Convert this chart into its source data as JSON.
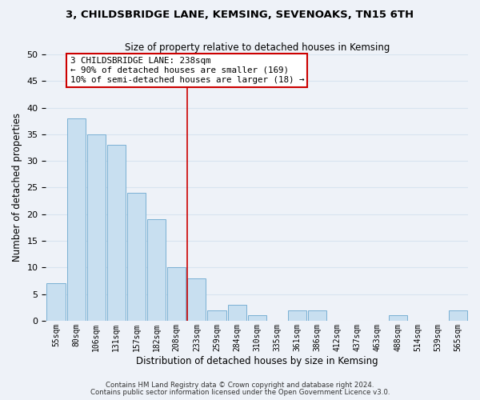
{
  "title": "3, CHILDSBRIDGE LANE, KEMSING, SEVENOAKS, TN15 6TH",
  "subtitle": "Size of property relative to detached houses in Kemsing",
  "xlabel": "Distribution of detached houses by size in Kemsing",
  "ylabel": "Number of detached properties",
  "bar_labels": [
    "55sqm",
    "80sqm",
    "106sqm",
    "131sqm",
    "157sqm",
    "182sqm",
    "208sqm",
    "233sqm",
    "259sqm",
    "284sqm",
    "310sqm",
    "335sqm",
    "361sqm",
    "386sqm",
    "412sqm",
    "437sqm",
    "463sqm",
    "488sqm",
    "514sqm",
    "539sqm",
    "565sqm"
  ],
  "bar_values": [
    7,
    38,
    35,
    33,
    24,
    19,
    10,
    8,
    2,
    3,
    1,
    0,
    2,
    2,
    0,
    0,
    0,
    1,
    0,
    0,
    2
  ],
  "bar_color": "#c8dff0",
  "bar_edge_color": "#7ab0d4",
  "vline_color": "#cc0000",
  "annotation_title": "3 CHILDSBRIDGE LANE: 238sqm",
  "annotation_line1": "← 90% of detached houses are smaller (169)",
  "annotation_line2": "10% of semi-detached houses are larger (18) →",
  "annotation_box_color": "#ffffff",
  "annotation_box_edge": "#cc0000",
  "ylim": [
    0,
    50
  ],
  "yticks": [
    0,
    5,
    10,
    15,
    20,
    25,
    30,
    35,
    40,
    45,
    50
  ],
  "footer1": "Contains HM Land Registry data © Crown copyright and database right 2024.",
  "footer2": "Contains public sector information licensed under the Open Government Licence v3.0.",
  "bg_color": "#eef2f8",
  "grid_color": "#d8e4f0"
}
